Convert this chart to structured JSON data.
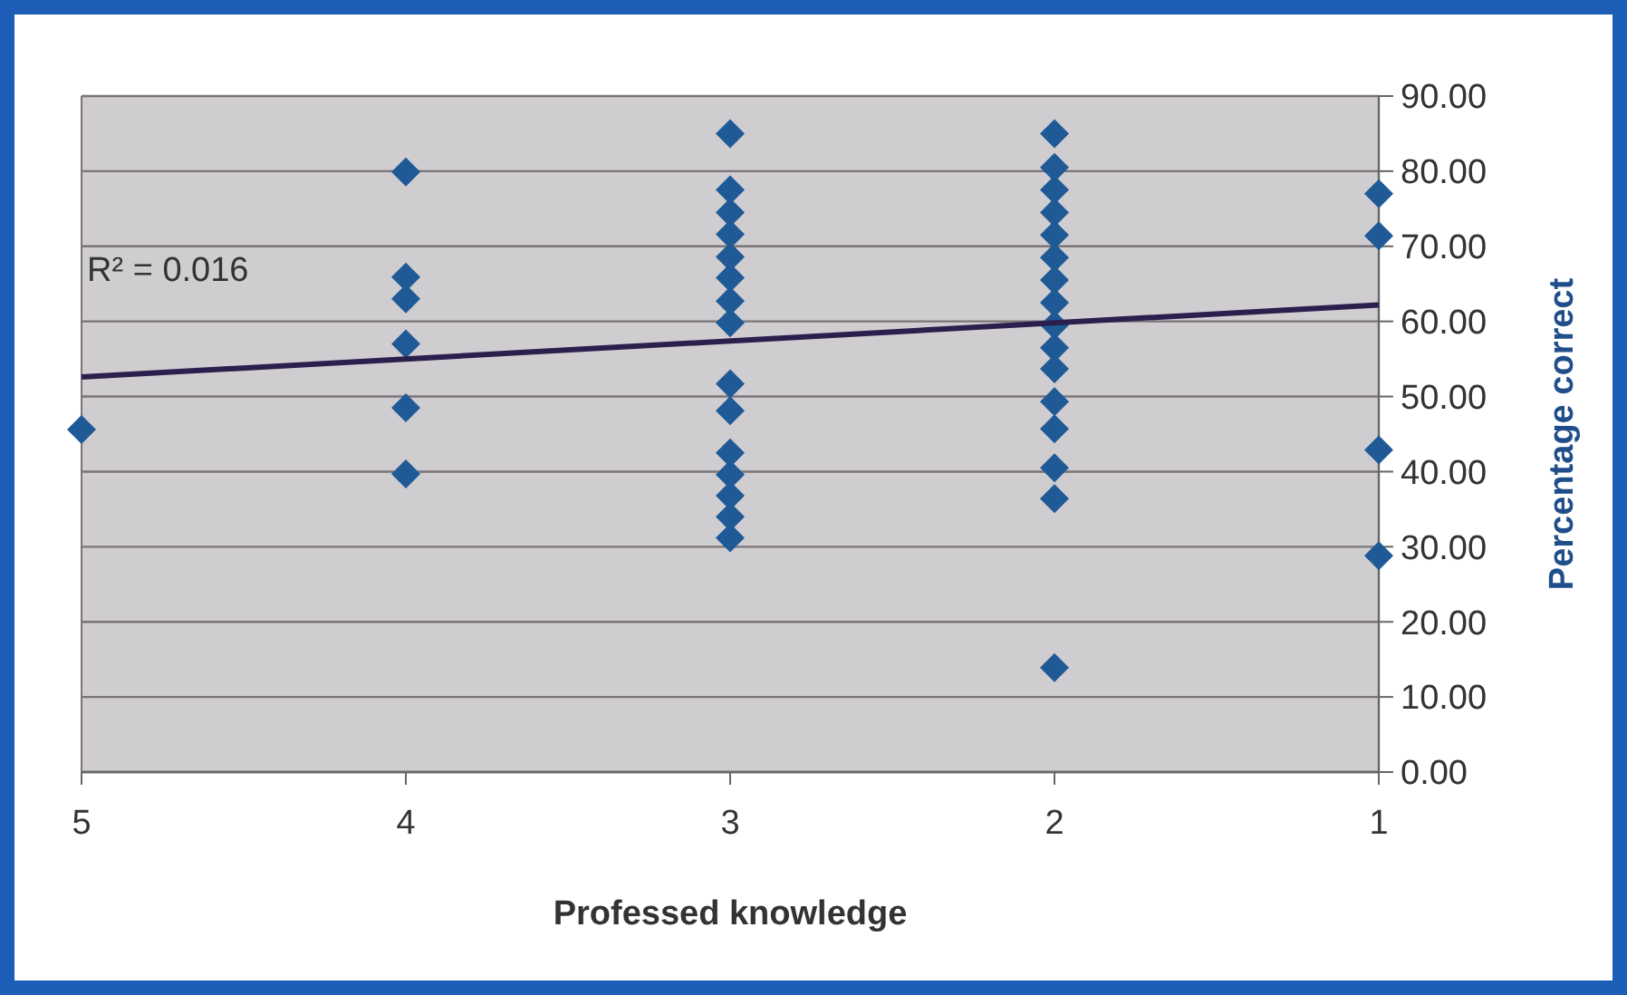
{
  "chart_data": {
    "type": "scatter",
    "xlabel": "Professed knowledge",
    "ylabel": "Percentage correct",
    "xlim": [
      5,
      1
    ],
    "xticks": [
      5,
      4,
      3,
      2,
      1
    ],
    "ylim": [
      0,
      90
    ],
    "yticks": [
      {
        "value": 0,
        "label": "0.00"
      },
      {
        "value": 10,
        "label": "10.00"
      },
      {
        "value": 20,
        "label": "20.00"
      },
      {
        "value": 30,
        "label": "30.00"
      },
      {
        "value": 40,
        "label": "40.00"
      },
      {
        "value": 50,
        "label": "50.00"
      },
      {
        "value": 60,
        "label": "60.00"
      },
      {
        "value": 70,
        "label": "70.00"
      },
      {
        "value": 80,
        "label": "80.00"
      },
      {
        "value": 90,
        "label": "90.00"
      }
    ],
    "grid": "y",
    "marker": "diamond",
    "annotations": [
      "R² = 0.016"
    ],
    "series": [
      {
        "color": "#1f5a96",
        "x": [
          5,
          4,
          4,
          4,
          4,
          4,
          4,
          3,
          3,
          3,
          3,
          3,
          3,
          3,
          3,
          3,
          3,
          3,
          3,
          3,
          3,
          3,
          2,
          2,
          2,
          2,
          2,
          2,
          2,
          2,
          2,
          2,
          2,
          2,
          2,
          2,
          2,
          2,
          1,
          1,
          1,
          1
        ],
        "values": [
          45.6,
          79.9,
          65.9,
          63.0,
          57.0,
          48.5,
          39.7,
          85.0,
          77.5,
          74.5,
          71.6,
          68.6,
          65.8,
          62.7,
          59.8,
          51.7,
          48.1,
          42.5,
          39.6,
          36.8,
          34.0,
          31.2,
          85.0,
          80.5,
          77.5,
          74.5,
          71.5,
          68.5,
          65.5,
          62.5,
          59.5,
          56.5,
          53.7,
          49.3,
          45.7,
          40.5,
          36.4,
          13.9,
          77.0,
          71.4,
          42.9,
          28.8
        ]
      },
      {
        "type": "line",
        "color": "#2b1f4e",
        "line_style": "solid",
        "marker": "none",
        "x": [
          5,
          1
        ],
        "values": [
          52.6,
          62.2
        ]
      }
    ]
  }
}
